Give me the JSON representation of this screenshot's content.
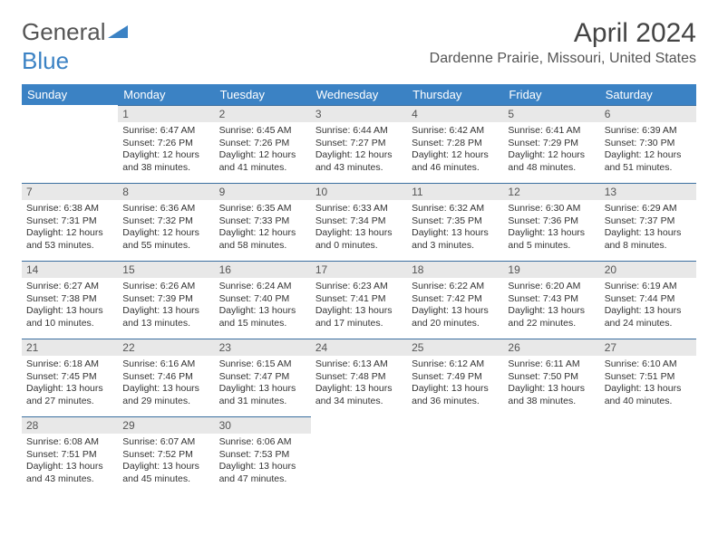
{
  "logo": {
    "part1": "General",
    "part2": "Blue"
  },
  "month_title": "April 2024",
  "location": "Dardenne Prairie, Missouri, United States",
  "colors": {
    "header_bg": "#3b82c4",
    "daynum_bg": "#e8e8e8",
    "row_border": "#3b6fa0",
    "text": "#333333",
    "background": "#ffffff"
  },
  "day_labels": [
    "Sunday",
    "Monday",
    "Tuesday",
    "Wednesday",
    "Thursday",
    "Friday",
    "Saturday"
  ],
  "weeks": [
    [
      null,
      {
        "n": "1",
        "sr": "6:47 AM",
        "ss": "7:26 PM",
        "dl": "12 hours and 38 minutes."
      },
      {
        "n": "2",
        "sr": "6:45 AM",
        "ss": "7:26 PM",
        "dl": "12 hours and 41 minutes."
      },
      {
        "n": "3",
        "sr": "6:44 AM",
        "ss": "7:27 PM",
        "dl": "12 hours and 43 minutes."
      },
      {
        "n": "4",
        "sr": "6:42 AM",
        "ss": "7:28 PM",
        "dl": "12 hours and 46 minutes."
      },
      {
        "n": "5",
        "sr": "6:41 AM",
        "ss": "7:29 PM",
        "dl": "12 hours and 48 minutes."
      },
      {
        "n": "6",
        "sr": "6:39 AM",
        "ss": "7:30 PM",
        "dl": "12 hours and 51 minutes."
      }
    ],
    [
      {
        "n": "7",
        "sr": "6:38 AM",
        "ss": "7:31 PM",
        "dl": "12 hours and 53 minutes."
      },
      {
        "n": "8",
        "sr": "6:36 AM",
        "ss": "7:32 PM",
        "dl": "12 hours and 55 minutes."
      },
      {
        "n": "9",
        "sr": "6:35 AM",
        "ss": "7:33 PM",
        "dl": "12 hours and 58 minutes."
      },
      {
        "n": "10",
        "sr": "6:33 AM",
        "ss": "7:34 PM",
        "dl": "13 hours and 0 minutes."
      },
      {
        "n": "11",
        "sr": "6:32 AM",
        "ss": "7:35 PM",
        "dl": "13 hours and 3 minutes."
      },
      {
        "n": "12",
        "sr": "6:30 AM",
        "ss": "7:36 PM",
        "dl": "13 hours and 5 minutes."
      },
      {
        "n": "13",
        "sr": "6:29 AM",
        "ss": "7:37 PM",
        "dl": "13 hours and 8 minutes."
      }
    ],
    [
      {
        "n": "14",
        "sr": "6:27 AM",
        "ss": "7:38 PM",
        "dl": "13 hours and 10 minutes."
      },
      {
        "n": "15",
        "sr": "6:26 AM",
        "ss": "7:39 PM",
        "dl": "13 hours and 13 minutes."
      },
      {
        "n": "16",
        "sr": "6:24 AM",
        "ss": "7:40 PM",
        "dl": "13 hours and 15 minutes."
      },
      {
        "n": "17",
        "sr": "6:23 AM",
        "ss": "7:41 PM",
        "dl": "13 hours and 17 minutes."
      },
      {
        "n": "18",
        "sr": "6:22 AM",
        "ss": "7:42 PM",
        "dl": "13 hours and 20 minutes."
      },
      {
        "n": "19",
        "sr": "6:20 AM",
        "ss": "7:43 PM",
        "dl": "13 hours and 22 minutes."
      },
      {
        "n": "20",
        "sr": "6:19 AM",
        "ss": "7:44 PM",
        "dl": "13 hours and 24 minutes."
      }
    ],
    [
      {
        "n": "21",
        "sr": "6:18 AM",
        "ss": "7:45 PM",
        "dl": "13 hours and 27 minutes."
      },
      {
        "n": "22",
        "sr": "6:16 AM",
        "ss": "7:46 PM",
        "dl": "13 hours and 29 minutes."
      },
      {
        "n": "23",
        "sr": "6:15 AM",
        "ss": "7:47 PM",
        "dl": "13 hours and 31 minutes."
      },
      {
        "n": "24",
        "sr": "6:13 AM",
        "ss": "7:48 PM",
        "dl": "13 hours and 34 minutes."
      },
      {
        "n": "25",
        "sr": "6:12 AM",
        "ss": "7:49 PM",
        "dl": "13 hours and 36 minutes."
      },
      {
        "n": "26",
        "sr": "6:11 AM",
        "ss": "7:50 PM",
        "dl": "13 hours and 38 minutes."
      },
      {
        "n": "27",
        "sr": "6:10 AM",
        "ss": "7:51 PM",
        "dl": "13 hours and 40 minutes."
      }
    ],
    [
      {
        "n": "28",
        "sr": "6:08 AM",
        "ss": "7:51 PM",
        "dl": "13 hours and 43 minutes."
      },
      {
        "n": "29",
        "sr": "6:07 AM",
        "ss": "7:52 PM",
        "dl": "13 hours and 45 minutes."
      },
      {
        "n": "30",
        "sr": "6:06 AM",
        "ss": "7:53 PM",
        "dl": "13 hours and 47 minutes."
      },
      null,
      null,
      null,
      null
    ]
  ],
  "labels": {
    "sunrise": "Sunrise:",
    "sunset": "Sunset:",
    "daylight": "Daylight:"
  }
}
